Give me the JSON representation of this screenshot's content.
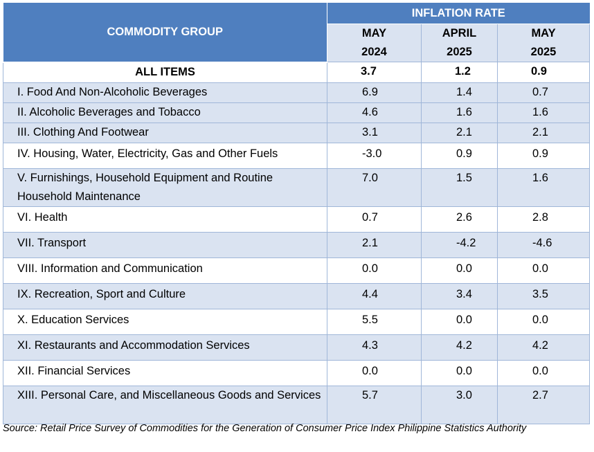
{
  "header": {
    "group_label": "COMMODITY GROUP",
    "inflation_label": "INFLATION RATE",
    "periods": [
      {
        "month": "MAY",
        "year": "2024"
      },
      {
        "month": "APRIL",
        "year": "2025"
      },
      {
        "month": "MAY",
        "year": "2025"
      }
    ]
  },
  "all_items": {
    "name": "ALL ITEMS",
    "values": [
      "3.7",
      "1.2",
      "0.9"
    ]
  },
  "rows": [
    {
      "name": "I. Food And Non-Alcoholic Beverages",
      "values": [
        "6.9",
        "1.4",
        "0.7"
      ]
    },
    {
      "name": "II. Alcoholic Beverages and Tobacco",
      "values": [
        "4.6",
        "1.6",
        "1.6"
      ]
    },
    {
      "name": "III. Clothing And Footwear",
      "values": [
        "3.1",
        "2.1",
        "2.1"
      ]
    },
    {
      "name": "IV. Housing, Water, Electricity, Gas and Other Fuels",
      "values": [
        "-3.0",
        "0.9",
        "0.9"
      ]
    },
    {
      "name": "V. Furnishings, Household Equipment and Routine Household Maintenance",
      "values": [
        "7.0",
        "1.5",
        "1.6"
      ]
    },
    {
      "name": "VI. Health",
      "values": [
        "0.7",
        "2.6",
        "2.8"
      ]
    },
    {
      "name": "VII. Transport",
      "values": [
        "2.1",
        "-4.2",
        "-4.6"
      ]
    },
    {
      "name": "VIII. Information and Communication",
      "values": [
        "0.0",
        "0.0",
        "0.0"
      ]
    },
    {
      "name": "IX. Recreation, Sport and Culture",
      "values": [
        "4.4",
        "3.4",
        "3.5"
      ]
    },
    {
      "name": "X. Education Services",
      "values": [
        "5.5",
        "0.0",
        "0.0"
      ]
    },
    {
      "name": "XI. Restaurants and Accommodation Services",
      "values": [
        "4.3",
        "4.2",
        "4.2"
      ]
    },
    {
      "name": "XII. Financial Services",
      "values": [
        "0.0",
        "0.0",
        "0.0"
      ]
    },
    {
      "name": "XIII. Personal Care, and Miscellaneous Goods and Services",
      "values": [
        "5.7",
        "3.0",
        "2.7"
      ]
    }
  ],
  "source": "Source: Retail Price Survey of Commodities for the Generation of Consumer Price Index Philippine Statistics Authority"
}
